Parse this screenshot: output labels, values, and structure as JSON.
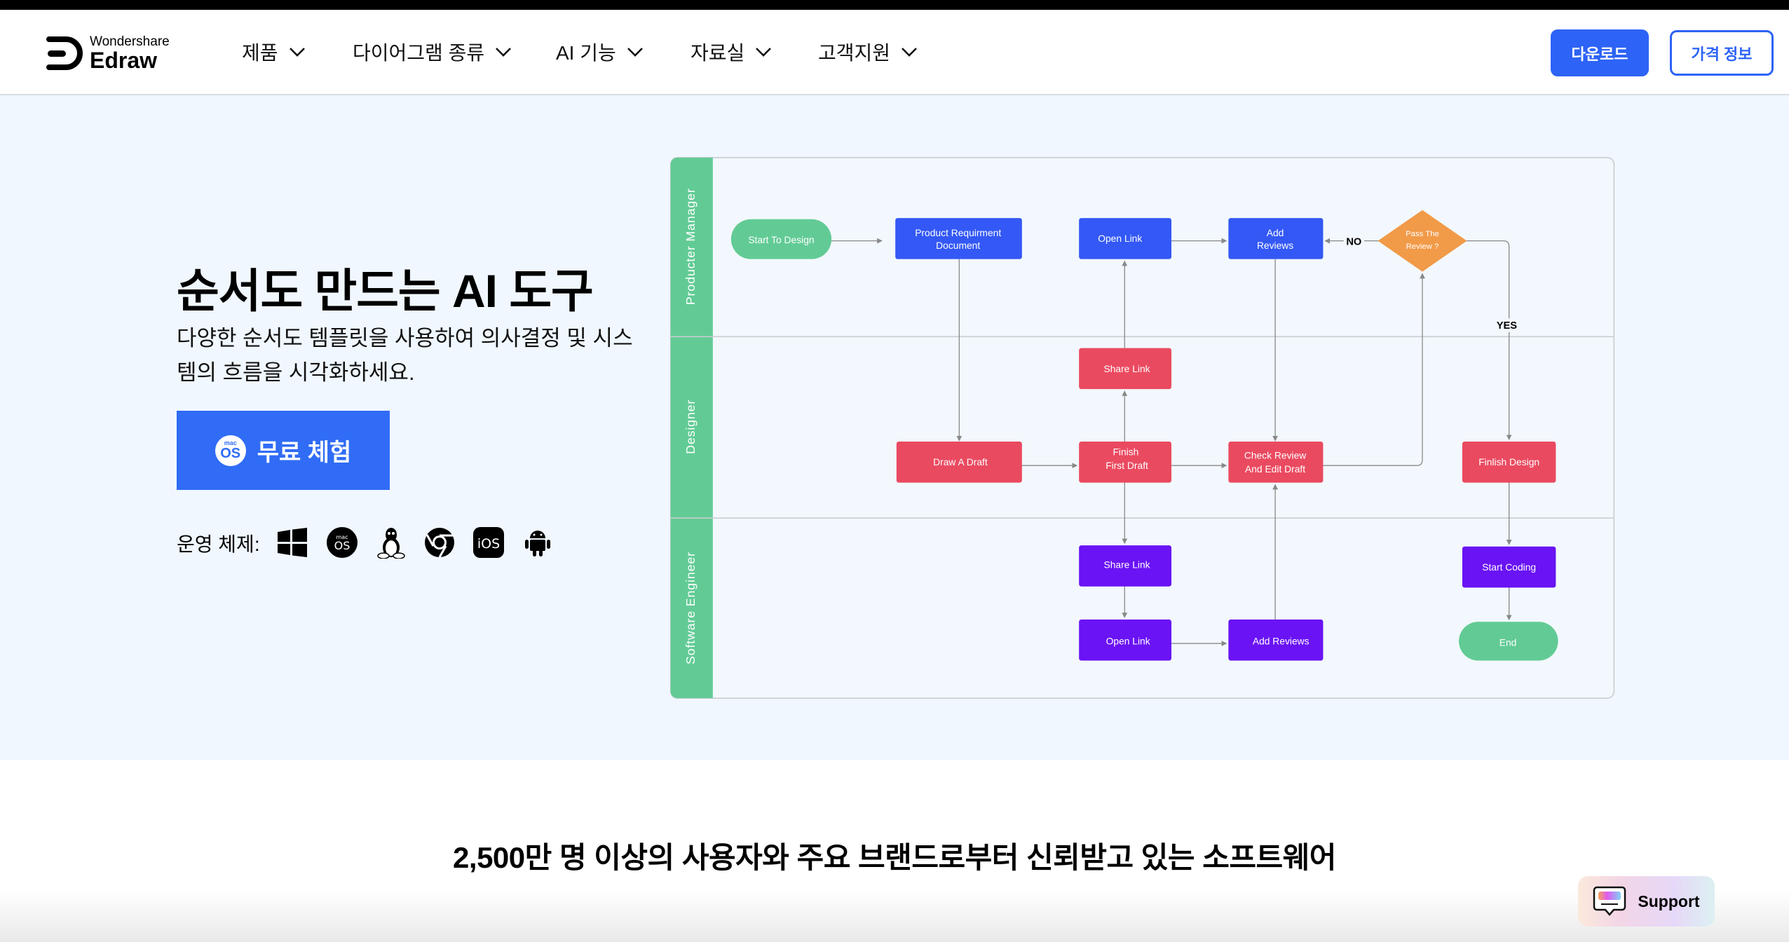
{
  "header": {
    "logo_small": "Wondershare",
    "logo_big": "Edraw",
    "nav": [
      "제품",
      "다이어그램 종류",
      "AI 기능",
      "자료실",
      "고객지원"
    ],
    "download_label": "다운로드",
    "pricing_label": "가격 정보",
    "accent": "#2d63f6"
  },
  "hero": {
    "title": "순서도 만드는 AI 도구",
    "subtitle": "다양한 순서도 템플릿을 사용하여 의사결정 및 시스템의 흐름을 시각화하세요.",
    "cta_label": "무료 체험",
    "cta_badge_small": "mac",
    "cta_badge_big": "OS",
    "os_label": "운영 체제:",
    "os_icons": [
      "windows-icon",
      "macos-icon",
      "linux-icon",
      "chrome-icon",
      "ios-icon",
      "android-icon"
    ]
  },
  "diagram": {
    "lanes": [
      "Producter Manager",
      "Designer",
      "Software Engineer"
    ],
    "nodes": {
      "start": "Start To Design",
      "prd1": "Product Requirment",
      "prd2": "Document",
      "open1": "Open Link",
      "add1a": "Add",
      "add1b": "Reviews",
      "pass1": "Pass The",
      "pass2": "Review ?",
      "share1": "Share Link",
      "draw": "Draw A Draft",
      "finish1": "Finish",
      "finish2": "First Draft",
      "check1": "Check Review",
      "check2": "And Edit Draft",
      "finlish": "Finlish Design",
      "share2": "Share Link",
      "coding": "Start Coding",
      "open2": "Open Link",
      "add2": "Add Reviews",
      "end": "End"
    },
    "no_label": "NO",
    "yes_label": "YES",
    "colors": {
      "lane": "#62cb95",
      "blue": "#3358f5",
      "red": "#ea4a60",
      "purple": "#6a13f4",
      "orange": "#f19a48",
      "green": "#62cb95"
    }
  },
  "trust_heading": "2,500만 명 이상의 사용자와 주요 브랜드로부터 신뢰받고 있는 소프트웨어",
  "support_label": "Support"
}
